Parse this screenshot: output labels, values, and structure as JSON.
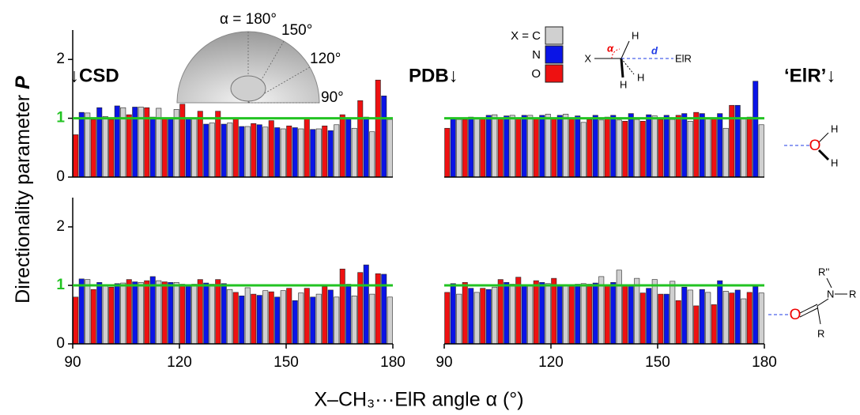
{
  "figure": {
    "ylabel": "Directionality parameter ",
    "ylabel_symbol": "P",
    "xlabel": "X–CH₃···ElR angle α (°)",
    "panel_labels": [
      "↓CSD",
      "PDB↓",
      "‘ElR’↓"
    ],
    "inset_labels": [
      "α = 180°",
      "150°",
      "120°",
      "90°"
    ],
    "scheme_labels": [
      "X",
      "α",
      "H",
      "H",
      "H",
      "d",
      "ElR"
    ],
    "water_labels": [
      "O",
      "H",
      "H"
    ],
    "amide_labels": [
      "R''",
      "N",
      "R",
      "O",
      "R"
    ]
  },
  "chart_data": [
    {
      "type": "bar",
      "x": [
        92.5,
        97.5,
        102.5,
        107.5,
        112.5,
        117.5,
        122.5,
        127.5,
        132.5,
        137.5,
        142.5,
        147.5,
        152.5,
        157.5,
        162.5,
        167.5,
        172.5,
        177.5
      ],
      "xlim": [
        90,
        180
      ],
      "ylim": [
        0,
        2.5
      ],
      "yticks": [
        0,
        1,
        2
      ],
      "reference_line": 1,
      "reference_color": "#22c322",
      "series": [
        {
          "name": "X = C",
          "color": "#d0d0d0",
          "values": [
            1.09,
            1.03,
            1.18,
            1.19,
            1.17,
            1.15,
            0.99,
            0.92,
            0.92,
            0.86,
            0.85,
            0.82,
            0.82,
            0.82,
            0.89,
            0.83,
            0.77,
            0.98
          ]
        },
        {
          "name": "N",
          "color": "#0a14e6",
          "values": [
            1.1,
            1.18,
            1.21,
            1.19,
            1.02,
            1.0,
            1.0,
            0.9,
            0.9,
            0.86,
            0.89,
            0.84,
            0.84,
            0.81,
            0.79,
            1.0,
            1.02,
            1.38
          ]
        },
        {
          "name": "O",
          "color": "#ee1111",
          "values": [
            0.72,
            0.98,
            0.98,
            1.06,
            1.18,
            1.0,
            1.24,
            1.12,
            1.12,
            1.0,
            0.91,
            0.96,
            0.87,
            1.01,
            0.87,
            1.06,
            1.3,
            1.65
          ]
        }
      ]
    },
    {
      "type": "bar",
      "x": [
        92.5,
        97.5,
        102.5,
        107.5,
        112.5,
        117.5,
        122.5,
        127.5,
        132.5,
        137.5,
        142.5,
        147.5,
        152.5,
        157.5,
        162.5,
        167.5,
        172.5,
        177.5
      ],
      "xlim": [
        90,
        180
      ],
      "ylim": [
        0,
        2.5
      ],
      "reference_line": 1,
      "reference_color": "#22c322",
      "series": [
        {
          "color": "#d0d0d0",
          "values": [
            0.98,
            1.0,
            1.06,
            1.05,
            1.05,
            1.07,
            1.07,
            0.93,
            0.97,
            0.97,
            0.98,
            1.04,
            0.98,
            0.95,
            1.0,
            0.83,
            1.0,
            0.89
          ]
        },
        {
          "color": "#0a14e6",
          "values": [
            1.0,
            1.02,
            1.05,
            1.04,
            1.05,
            1.05,
            1.05,
            1.04,
            1.05,
            1.05,
            1.08,
            1.06,
            1.05,
            1.08,
            1.08,
            1.08,
            1.22,
            1.63
          ]
        },
        {
          "color": "#ee1111",
          "values": [
            0.83,
            0.98,
            1.0,
            1.0,
            1.0,
            1.0,
            1.0,
            1.0,
            0.98,
            1.02,
            0.95,
            0.95,
            0.98,
            1.05,
            1.1,
            1.0,
            1.22,
            1.02
          ]
        }
      ]
    },
    {
      "type": "bar",
      "x": [
        92.5,
        97.5,
        102.5,
        107.5,
        112.5,
        117.5,
        122.5,
        127.5,
        132.5,
        137.5,
        142.5,
        147.5,
        152.5,
        157.5,
        162.5,
        167.5,
        172.5,
        177.5
      ],
      "xlim": [
        90,
        180
      ],
      "xticks": [
        90,
        120,
        150,
        180
      ],
      "ylim": [
        0,
        2.5
      ],
      "yticks": [
        0,
        1,
        2
      ],
      "reference_line": 1,
      "reference_color": "#22c322",
      "series": [
        {
          "color": "#d0d0d0",
          "values": [
            1.1,
            1.0,
            1.04,
            1.05,
            1.08,
            1.05,
            1.02,
            1.02,
            0.93,
            0.96,
            0.91,
            0.91,
            0.87,
            0.85,
            0.8,
            0.82,
            0.85,
            0.8
          ]
        },
        {
          "color": "#0a14e6",
          "values": [
            1.11,
            1.05,
            1.03,
            1.06,
            1.15,
            1.05,
            1.0,
            1.04,
            1.03,
            0.82,
            0.83,
            0.8,
            0.74,
            0.8,
            0.92,
            1.02,
            1.35,
            1.19
          ]
        },
        {
          "color": "#ee1111",
          "values": [
            0.8,
            0.93,
            0.97,
            1.1,
            1.08,
            1.06,
            1.02,
            1.1,
            1.1,
            0.88,
            0.85,
            0.89,
            0.95,
            0.95,
            0.98,
            1.28,
            1.22,
            1.2
          ]
        }
      ]
    },
    {
      "type": "bar",
      "x": [
        92.5,
        97.5,
        102.5,
        107.5,
        112.5,
        117.5,
        122.5,
        127.5,
        132.5,
        137.5,
        142.5,
        147.5,
        152.5,
        157.5,
        162.5,
        167.5,
        172.5,
        177.5
      ],
      "xlim": [
        90,
        180
      ],
      "xticks": [
        90,
        120,
        150,
        180
      ],
      "ylim": [
        0,
        2.5
      ],
      "reference_line": 1,
      "reference_color": "#22c322",
      "series": [
        {
          "color": "#d0d0d0",
          "values": [
            0.85,
            0.88,
            0.97,
            1.02,
            1.0,
            1.03,
            1.0,
            1.03,
            1.15,
            1.26,
            1.12,
            1.1,
            1.07,
            0.92,
            0.88,
            0.9,
            0.77,
            0.87
          ]
        },
        {
          "color": "#0a14e6",
          "values": [
            1.03,
            0.95,
            0.93,
            1.05,
            1.0,
            1.05,
            1.0,
            1.02,
            1.04,
            1.05,
            1.0,
            0.95,
            0.85,
            0.97,
            0.93,
            1.08,
            0.92,
            0.98
          ]
        },
        {
          "color": "#ee1111",
          "values": [
            0.88,
            1.05,
            0.95,
            1.1,
            1.14,
            1.08,
            1.12,
            1.0,
            1.02,
            1.0,
            1.0,
            0.87,
            0.85,
            0.74,
            0.65,
            0.67,
            0.87,
            0.88
          ]
        }
      ]
    }
  ]
}
